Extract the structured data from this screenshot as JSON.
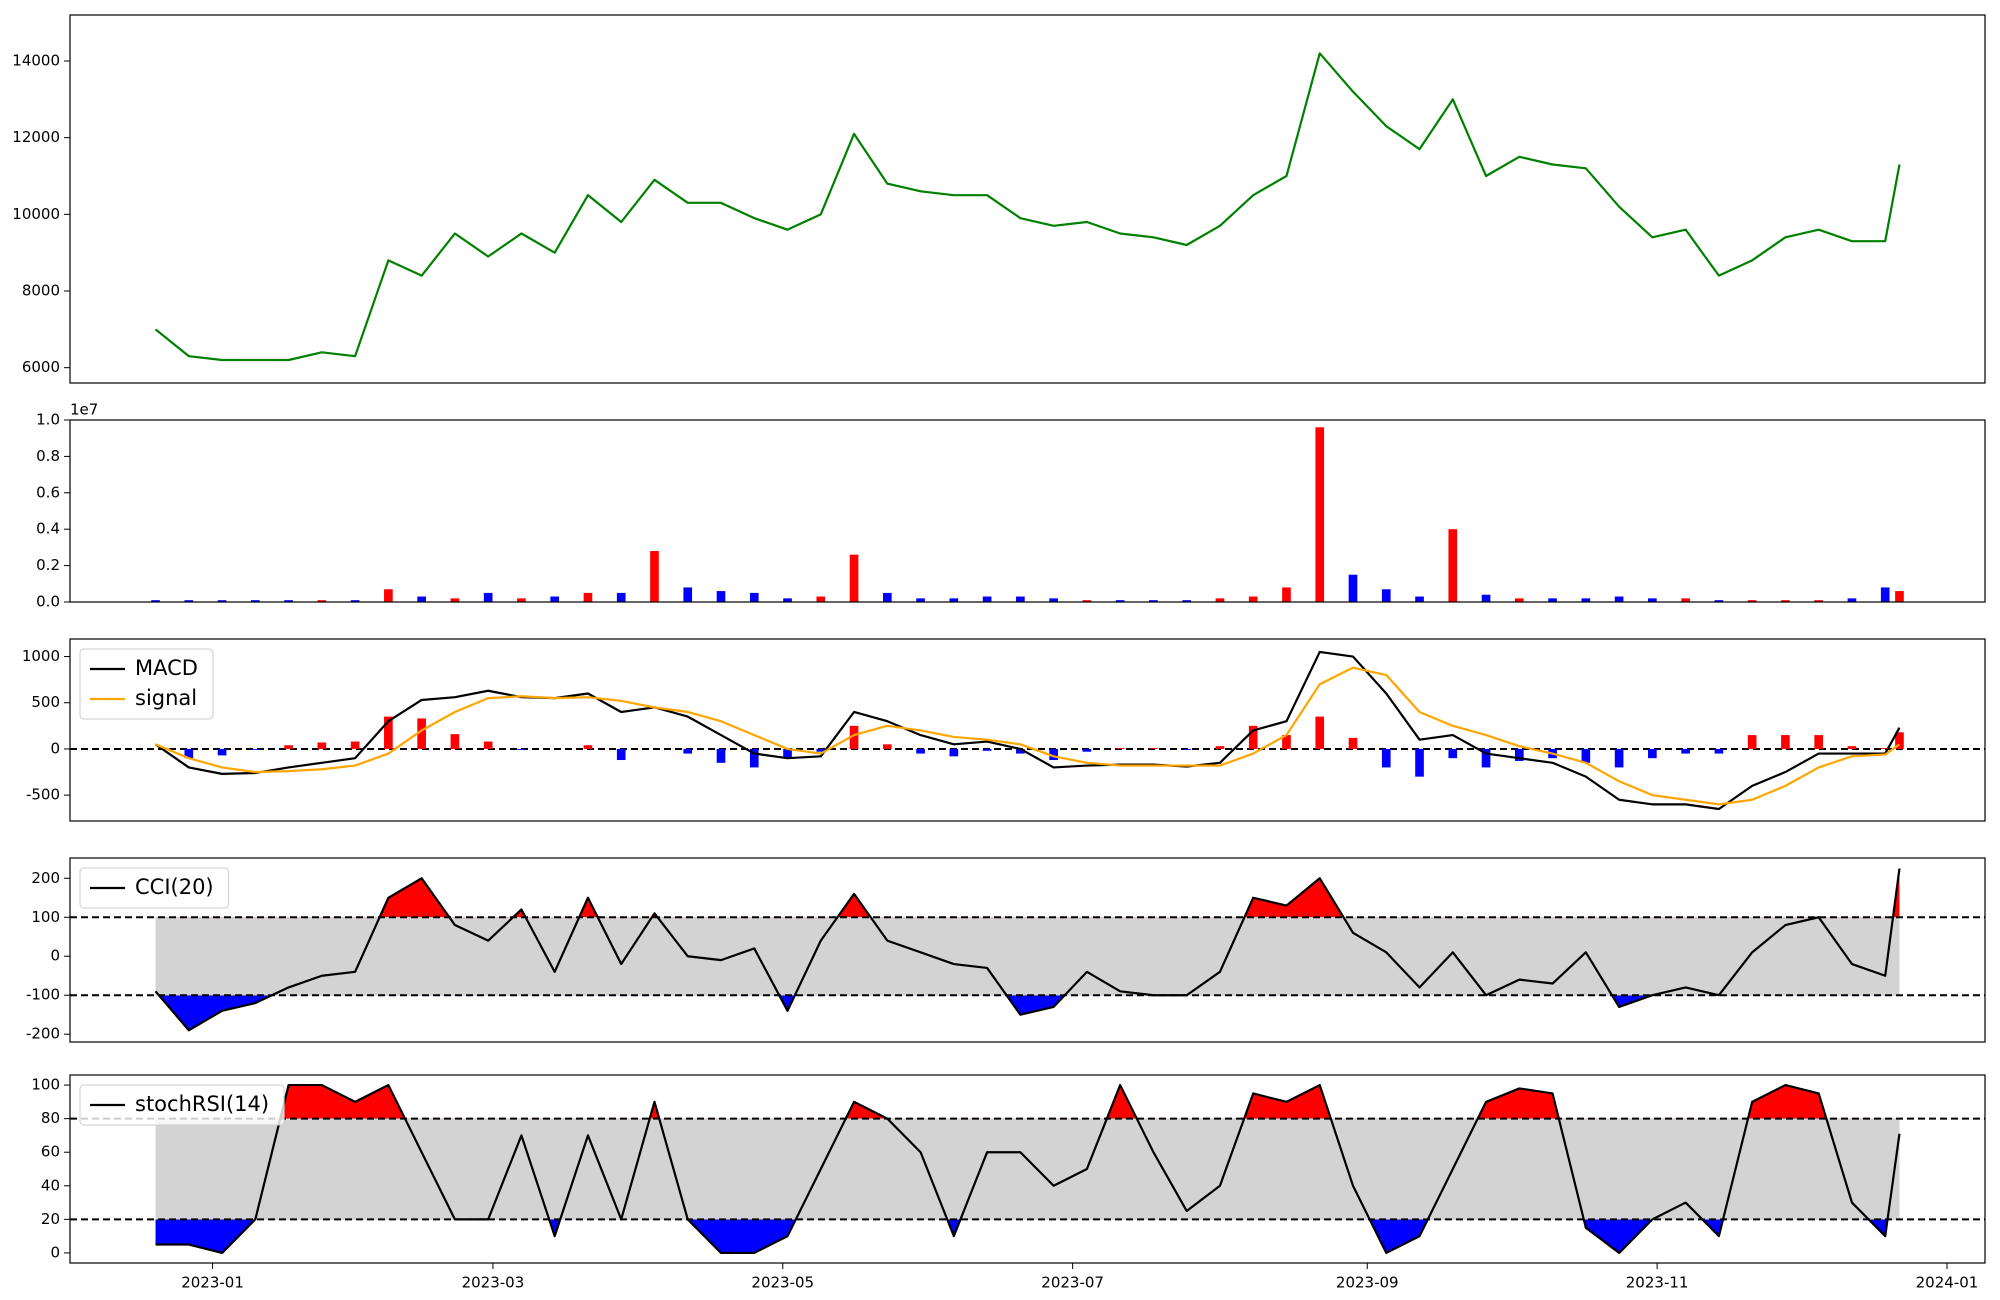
{
  "chart_data": [
    {
      "type": "line",
      "color": "green",
      "x": [
        "2022-12-20",
        "2022-12-27",
        "2023-01-03",
        "2023-01-10",
        "2023-01-17",
        "2023-01-24",
        "2023-01-31",
        "2023-02-07",
        "2023-02-14",
        "2023-02-21",
        "2023-02-28",
        "2023-03-07",
        "2023-03-14",
        "2023-03-21",
        "2023-03-28",
        "2023-04-04",
        "2023-04-11",
        "2023-04-18",
        "2023-04-25",
        "2023-05-02",
        "2023-05-09",
        "2023-05-16",
        "2023-05-23",
        "2023-05-30",
        "2023-06-06",
        "2023-06-13",
        "2023-06-20",
        "2023-06-27",
        "2023-07-04",
        "2023-07-11",
        "2023-07-18",
        "2023-07-25",
        "2023-08-01",
        "2023-08-08",
        "2023-08-15",
        "2023-08-22",
        "2023-08-29",
        "2023-09-05",
        "2023-09-12",
        "2023-09-19",
        "2023-09-26",
        "2023-10-03",
        "2023-10-10",
        "2023-10-17",
        "2023-10-24",
        "2023-10-31",
        "2023-11-07",
        "2023-11-14",
        "2023-11-21",
        "2023-11-28",
        "2023-12-05",
        "2023-12-12",
        "2023-12-19",
        "2023-12-22"
      ],
      "xlim": [
        "2022-12-02",
        "2024-01-09"
      ],
      "series": [
        {
          "color": "green",
          "values": [
            7000,
            6300,
            6200,
            6200,
            6200,
            6400,
            6300,
            8800,
            8400,
            9500,
            8900,
            9500,
            9000,
            10500,
            9800,
            10900,
            10300,
            10300,
            9900,
            9600,
            10000,
            12100,
            10800,
            10600,
            10500,
            10500,
            9900,
            9700,
            9800,
            9500,
            9400,
            9200,
            9700,
            10500,
            11000,
            14200,
            13200,
            12300,
            11700,
            13000,
            11000,
            11500,
            11300,
            11200,
            10200,
            9400,
            9600,
            8400,
            8800,
            9400,
            9600,
            9300,
            9300,
            11300
          ]
        }
      ],
      "ylim": [
        5600,
        15200
      ],
      "yticks": [
        6000,
        8000,
        10000,
        12000,
        14000
      ]
    },
    {
      "type": "bar",
      "x": [
        "2022-12-20",
        "2022-12-27",
        "2023-01-03",
        "2023-01-10",
        "2023-01-17",
        "2023-01-24",
        "2023-01-31",
        "2023-02-07",
        "2023-02-14",
        "2023-02-21",
        "2023-02-28",
        "2023-03-07",
        "2023-03-14",
        "2023-03-21",
        "2023-03-28",
        "2023-04-04",
        "2023-04-11",
        "2023-04-18",
        "2023-04-25",
        "2023-05-02",
        "2023-05-09",
        "2023-05-16",
        "2023-05-23",
        "2023-05-30",
        "2023-06-06",
        "2023-06-13",
        "2023-06-20",
        "2023-06-27",
        "2023-07-04",
        "2023-07-11",
        "2023-07-18",
        "2023-07-25",
        "2023-08-01",
        "2023-08-08",
        "2023-08-15",
        "2023-08-22",
        "2023-08-29",
        "2023-09-05",
        "2023-09-12",
        "2023-09-19",
        "2023-09-26",
        "2023-10-03",
        "2023-10-10",
        "2023-10-17",
        "2023-10-24",
        "2023-10-31",
        "2023-11-07",
        "2023-11-14",
        "2023-11-21",
        "2023-11-28",
        "2023-12-05",
        "2023-12-12",
        "2023-12-19",
        "2023-12-22"
      ],
      "xlim": [
        "2022-12-02",
        "2024-01-09"
      ],
      "series": [
        {
          "values": [
            100000,
            100000,
            100000,
            100000,
            100000,
            100000,
            100000,
            700000,
            300000,
            200000,
            500000,
            200000,
            300000,
            500000,
            500000,
            2800000,
            800000,
            600000,
            500000,
            200000,
            300000,
            2600000,
            500000,
            200000,
            200000,
            300000,
            300000,
            200000,
            100000,
            100000,
            100000,
            100000,
            200000,
            300000,
            800000,
            9600000,
            1500000,
            700000,
            300000,
            4000000,
            400000,
            200000,
            200000,
            200000,
            300000,
            200000,
            200000,
            100000,
            100000,
            100000,
            100000,
            200000,
            800000,
            600000
          ],
          "colors": [
            "blue",
            "blue",
            "blue",
            "blue",
            "blue",
            "red",
            "blue",
            "red",
            "blue",
            "red",
            "blue",
            "red",
            "blue",
            "red",
            "blue",
            "red",
            "blue",
            "blue",
            "blue",
            "blue",
            "red",
            "red",
            "blue",
            "blue",
            "blue",
            "blue",
            "blue",
            "blue",
            "red",
            "blue",
            "blue",
            "blue",
            "red",
            "red",
            "red",
            "red",
            "blue",
            "blue",
            "blue",
            "red",
            "blue",
            "red",
            "blue",
            "blue",
            "blue",
            "blue",
            "red",
            "blue",
            "red",
            "red",
            "red",
            "blue",
            "blue",
            "red"
          ]
        }
      ],
      "ylim": [
        0,
        10000000
      ],
      "yticks": [
        {
          "value": 0,
          "label": "0.0"
        },
        {
          "value": 2000000,
          "label": "0.2"
        },
        {
          "value": 4000000,
          "label": "0.4"
        },
        {
          "value": 6000000,
          "label": "0.6"
        },
        {
          "value": 8000000,
          "label": "0.8"
        },
        {
          "value": 10000000,
          "label": "1.0"
        }
      ],
      "offset_text": "1e7"
    },
    {
      "type": "combo",
      "x": [
        "2022-12-20",
        "2022-12-27",
        "2023-01-03",
        "2023-01-10",
        "2023-01-17",
        "2023-01-24",
        "2023-01-31",
        "2023-02-07",
        "2023-02-14",
        "2023-02-21",
        "2023-02-28",
        "2023-03-07",
        "2023-03-14",
        "2023-03-21",
        "2023-03-28",
        "2023-04-04",
        "2023-04-11",
        "2023-04-18",
        "2023-04-25",
        "2023-05-02",
        "2023-05-09",
        "2023-05-16",
        "2023-05-23",
        "2023-05-30",
        "2023-06-06",
        "2023-06-13",
        "2023-06-20",
        "2023-06-27",
        "2023-07-04",
        "2023-07-11",
        "2023-07-18",
        "2023-07-25",
        "2023-08-01",
        "2023-08-08",
        "2023-08-15",
        "2023-08-22",
        "2023-08-29",
        "2023-09-05",
        "2023-09-12",
        "2023-09-19",
        "2023-09-26",
        "2023-10-03",
        "2023-10-10",
        "2023-10-17",
        "2023-10-24",
        "2023-10-31",
        "2023-11-07",
        "2023-11-14",
        "2023-11-21",
        "2023-11-28",
        "2023-12-05",
        "2023-12-12",
        "2023-12-19",
        "2023-12-22"
      ],
      "xlim": [
        "2022-12-02",
        "2024-01-09"
      ],
      "series": [
        {
          "type": "bar",
          "values": [
            0,
            -100,
            -70,
            -10,
            40,
            70,
            80,
            350,
            330,
            160,
            80,
            -10,
            0,
            40,
            -120,
            0,
            -50,
            -150,
            -200,
            -100,
            -30,
            250,
            50,
            -50,
            -80,
            -20,
            -50,
            -120,
            -30,
            10,
            10,
            -10,
            30,
            250,
            150,
            350,
            120,
            -200,
            -300,
            -100,
            -200,
            -130,
            -100,
            -150,
            -200,
            -100,
            -50,
            -50,
            150,
            150,
            150,
            30,
            10,
            180
          ],
          "colors": [
            "red",
            "blue",
            "blue",
            "blue",
            "red",
            "red",
            "red",
            "red",
            "red",
            "red",
            "red",
            "blue",
            "red",
            "red",
            "blue",
            "red",
            "blue",
            "blue",
            "blue",
            "blue",
            "blue",
            "red",
            "red",
            "blue",
            "blue",
            "blue",
            "blue",
            "blue",
            "blue",
            "red",
            "red",
            "blue",
            "red",
            "red",
            "red",
            "red",
            "red",
            "blue",
            "blue",
            "blue",
            "blue",
            "blue",
            "blue",
            "blue",
            "blue",
            "blue",
            "blue",
            "blue",
            "red",
            "red",
            "red",
            "red",
            "red",
            "red"
          ]
        },
        {
          "type": "line",
          "name": "MACD",
          "color": "black",
          "values": [
            50,
            -200,
            -270,
            -260,
            -200,
            -150,
            -100,
            300,
            530,
            560,
            630,
            560,
            550,
            600,
            400,
            450,
            350,
            150,
            -50,
            -100,
            -80,
            400,
            300,
            150,
            50,
            80,
            0,
            -200,
            -180,
            -170,
            -170,
            -190,
            -150,
            200,
            300,
            1050,
            1000,
            600,
            100,
            150,
            -50,
            -100,
            -150,
            -300,
            -550,
            -600,
            -600,
            -650,
            -400,
            -250,
            -50,
            -50,
            -50,
            230
          ]
        },
        {
          "type": "line",
          "name": "signal",
          "color": "orange",
          "values": [
            50,
            -100,
            -200,
            -250,
            -240,
            -220,
            -180,
            -50,
            200,
            400,
            550,
            570,
            550,
            560,
            520,
            450,
            400,
            300,
            150,
            0,
            -50,
            150,
            250,
            200,
            130,
            100,
            50,
            -80,
            -150,
            -180,
            -180,
            -180,
            -180,
            -50,
            150,
            700,
            880,
            800,
            400,
            250,
            150,
            30,
            -50,
            -150,
            -350,
            -500,
            -550,
            -600,
            -550,
            -400,
            -200,
            -80,
            -60,
            50
          ]
        }
      ],
      "ylim": [
        -780,
        1190
      ],
      "yticks": [
        -500,
        0,
        500,
        1000
      ],
      "hlines": [
        0
      ],
      "legend": "upper left"
    },
    {
      "type": "line",
      "x": [
        "2022-12-20",
        "2022-12-27",
        "2023-01-03",
        "2023-01-10",
        "2023-01-17",
        "2023-01-24",
        "2023-01-31",
        "2023-02-07",
        "2023-02-14",
        "2023-02-21",
        "2023-02-28",
        "2023-03-07",
        "2023-03-14",
        "2023-03-21",
        "2023-03-28",
        "2023-04-04",
        "2023-04-11",
        "2023-04-18",
        "2023-04-25",
        "2023-05-02",
        "2023-05-09",
        "2023-05-16",
        "2023-05-23",
        "2023-05-30",
        "2023-06-06",
        "2023-06-13",
        "2023-06-20",
        "2023-06-27",
        "2023-07-04",
        "2023-07-11",
        "2023-07-18",
        "2023-07-25",
        "2023-08-01",
        "2023-08-08",
        "2023-08-15",
        "2023-08-22",
        "2023-08-29",
        "2023-09-05",
        "2023-09-12",
        "2023-09-19",
        "2023-09-26",
        "2023-10-03",
        "2023-10-10",
        "2023-10-17",
        "2023-10-24",
        "2023-10-31",
        "2023-11-07",
        "2023-11-14",
        "2023-11-21",
        "2023-11-28",
        "2023-12-05",
        "2023-12-12",
        "2023-12-19",
        "2023-12-22"
      ],
      "xlim": [
        "2022-12-02",
        "2024-01-09"
      ],
      "series": [
        {
          "name": "CCI(20)",
          "color": "black",
          "values": [
            -90,
            -190,
            -140,
            -120,
            -80,
            -50,
            -40,
            150,
            200,
            80,
            40,
            120,
            -40,
            150,
            -20,
            110,
            0,
            -10,
            20,
            -140,
            40,
            160,
            40,
            10,
            -20,
            -30,
            -150,
            -130,
            -40,
            -90,
            -100,
            -100,
            -40,
            150,
            130,
            200,
            60,
            10,
            -80,
            10,
            -100,
            -60,
            -70,
            10,
            -130,
            -100,
            -80,
            -100,
            10,
            80,
            100,
            -20,
            -50,
            225
          ]
        }
      ],
      "ylim": [
        -220,
        252
      ],
      "yticks": [
        -200,
        -100,
        0,
        100,
        200
      ],
      "hlines": [
        100,
        -100
      ],
      "fill": {
        "above": "red",
        "between": "lightgray",
        "below": "blue"
      },
      "legend": "upper left"
    },
    {
      "type": "line",
      "x": [
        "2022-12-20",
        "2022-12-27",
        "2023-01-03",
        "2023-01-10",
        "2023-01-17",
        "2023-01-24",
        "2023-01-31",
        "2023-02-07",
        "2023-02-14",
        "2023-02-21",
        "2023-02-28",
        "2023-03-07",
        "2023-03-14",
        "2023-03-21",
        "2023-03-28",
        "2023-04-04",
        "2023-04-11",
        "2023-04-18",
        "2023-04-25",
        "2023-05-02",
        "2023-05-09",
        "2023-05-16",
        "2023-05-23",
        "2023-05-30",
        "2023-06-06",
        "2023-06-13",
        "2023-06-20",
        "2023-06-27",
        "2023-07-04",
        "2023-07-11",
        "2023-07-18",
        "2023-07-25",
        "2023-08-01",
        "2023-08-08",
        "2023-08-15",
        "2023-08-22",
        "2023-08-29",
        "2023-09-05",
        "2023-09-12",
        "2023-09-19",
        "2023-09-26",
        "2023-10-03",
        "2023-10-10",
        "2023-10-17",
        "2023-10-24",
        "2023-10-31",
        "2023-11-07",
        "2023-11-14",
        "2023-11-21",
        "2023-11-28",
        "2023-12-05",
        "2023-12-12",
        "2023-12-19",
        "2023-12-22"
      ],
      "xlim": [
        "2022-12-02",
        "2024-01-09"
      ],
      "series": [
        {
          "name": "stochRSI(14)",
          "color": "black",
          "values": [
            5,
            5,
            0,
            20,
            100,
            100,
            90,
            100,
            60,
            20,
            20,
            70,
            10,
            70,
            20,
            90,
            20,
            0,
            0,
            10,
            50,
            90,
            80,
            60,
            10,
            60,
            60,
            40,
            50,
            100,
            60,
            25,
            40,
            95,
            90,
            100,
            40,
            0,
            10,
            50,
            90,
            98,
            95,
            15,
            0,
            20,
            30,
            10,
            90,
            100,
            95,
            30,
            10,
            71
          ]
        }
      ],
      "ylim": [
        -6,
        106
      ],
      "yticks": [
        0,
        20,
        40,
        60,
        80,
        100
      ],
      "hlines": [
        80,
        20
      ],
      "fill": {
        "above": "red",
        "between": "lightgray",
        "below": "blue"
      },
      "legend": "upper left",
      "xticks": [
        {
          "value": "2023-01-01",
          "label": "2023-01"
        },
        {
          "value": "2023-03-01",
          "label": "2023-03"
        },
        {
          "value": "2023-05-01",
          "label": "2023-05"
        },
        {
          "value": "2023-07-01",
          "label": "2023-07"
        },
        {
          "value": "2023-09-01",
          "label": "2023-09"
        },
        {
          "value": "2023-11-01",
          "label": "2023-11"
        },
        {
          "value": "2024-01-01",
          "label": "2024-01"
        }
      ]
    }
  ]
}
